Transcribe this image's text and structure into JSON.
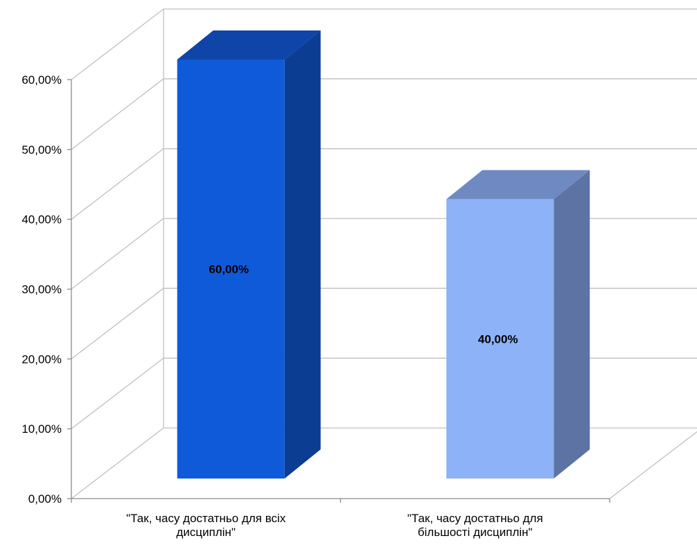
{
  "chart_data": {
    "type": "bar",
    "categories": [
      [
        "\"Так,  часу достатньо  для всіх",
        "дисциплін\""
      ],
      [
        "\"Так,  часу достатньо  для",
        "більшості  дисциплін\""
      ]
    ],
    "values": [
      0.6,
      0.4
    ],
    "data_labels": [
      "60,00%",
      "40,00%"
    ],
    "y_ticks": [
      "0,00%",
      "10,00%",
      "20,00%",
      "30,00%",
      "40,00%",
      "50,00%",
      "60,00%"
    ],
    "ylim": [
      0,
      0.6
    ],
    "grid": true,
    "three_d": true,
    "legend": "none",
    "title": "",
    "xlabel": "",
    "ylabel": ""
  },
  "colors": {
    "series_point_colors": [
      {
        "front": "#0f5ad9",
        "side": "#0b3d93",
        "top": "#0f44a8"
      },
      {
        "front": "#8db2f7",
        "side": "#5c73a3",
        "top": "#6f89c2"
      }
    ],
    "grid": "#bfbfbf",
    "axis": "#8c8c8c"
  }
}
